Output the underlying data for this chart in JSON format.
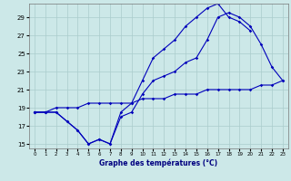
{
  "xlabel": "Graphe des températures (°C)",
  "background_color": "#cce8e8",
  "grid_color": "#aacccc",
  "line_color": "#0000bb",
  "hours": [
    0,
    1,
    2,
    3,
    4,
    5,
    6,
    7,
    8,
    9,
    10,
    11,
    12,
    13,
    14,
    15,
    16,
    17,
    18,
    19,
    20,
    21,
    22,
    23
  ],
  "line1": [
    18.5,
    18.5,
    18.5,
    17.5,
    16.5,
    15.0,
    15.5,
    15.0,
    18.0,
    18.5,
    20.5,
    22.0,
    22.5,
    23.0,
    24.0,
    24.5,
    26.5,
    29.0,
    29.5,
    29.0,
    28.0,
    26.0,
    23.5,
    22.0
  ],
  "line2": [
    18.5,
    18.5,
    18.5,
    17.5,
    16.5,
    15.0,
    15.5,
    15.0,
    18.5,
    19.5,
    22.0,
    24.5,
    25.5,
    26.5,
    28.0,
    29.0,
    30.0,
    30.5,
    29.0,
    28.5,
    27.5,
    null,
    null,
    null
  ],
  "line3": [
    18.5,
    18.5,
    19.0,
    19.0,
    19.0,
    19.5,
    19.5,
    19.5,
    19.5,
    19.5,
    20.0,
    20.0,
    20.0,
    20.5,
    20.5,
    20.5,
    21.0,
    21.0,
    21.0,
    21.0,
    21.0,
    21.5,
    21.5,
    22.0
  ],
  "ylim": [
    14.5,
    30.5
  ],
  "yticks": [
    15,
    17,
    19,
    21,
    23,
    25,
    27,
    29
  ],
  "xlim": [
    -0.5,
    23.5
  ],
  "xticks": [
    0,
    1,
    2,
    3,
    4,
    5,
    6,
    7,
    8,
    9,
    10,
    11,
    12,
    13,
    14,
    15,
    16,
    17,
    18,
    19,
    20,
    21,
    22,
    23
  ]
}
